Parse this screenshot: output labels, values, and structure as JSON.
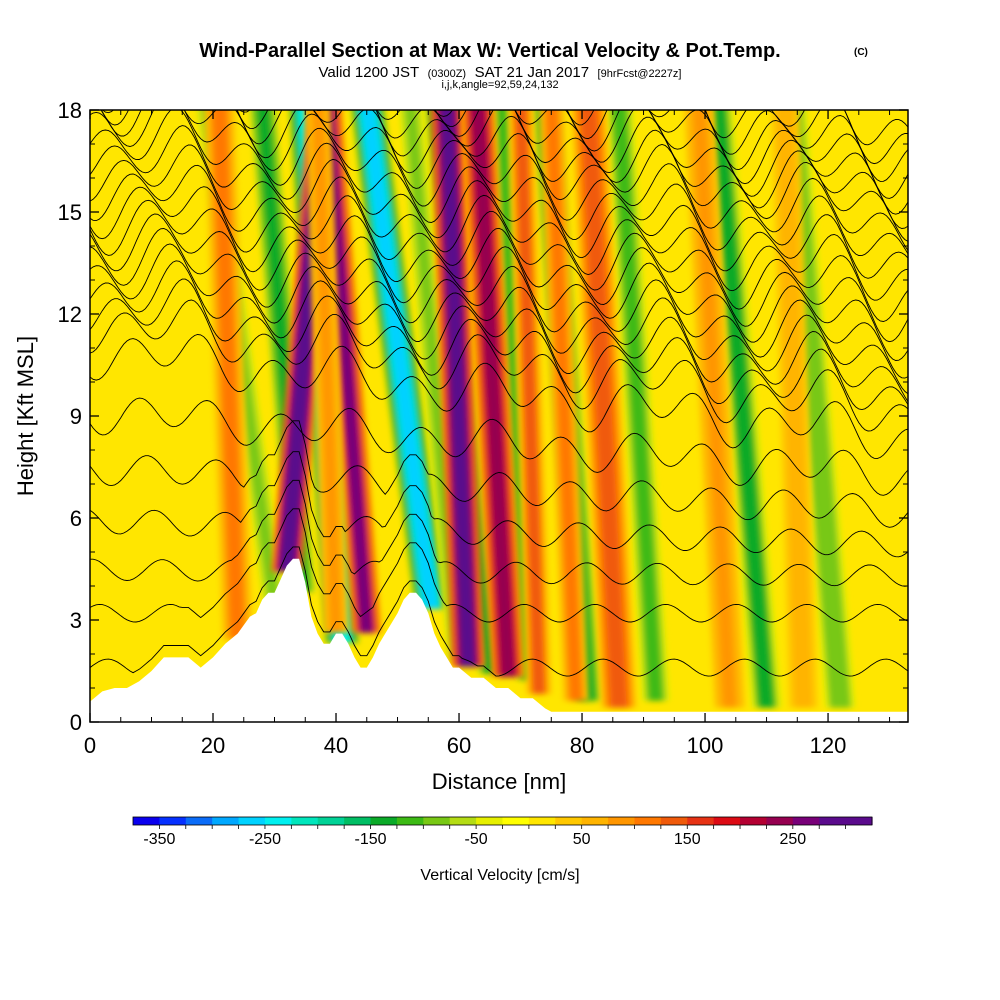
{
  "chart_data": {
    "type": "heatmap",
    "title": "Wind-Parallel Section at Max W: Vertical Velocity & Pot.Temp.",
    "title_mark": "(C)",
    "subtitle": {
      "valid": "Valid 1200 JST",
      "utc": "(0300Z)",
      "date": "SAT 21 Jan 2017",
      "fcst": "[9hrFcst@2227z]",
      "indices": "i,j,k,angle=92,59,24,132"
    },
    "xlabel": "Distance [nm]",
    "ylabel": "Height [Kft MSL]",
    "xlim": [
      0,
      133
    ],
    "ylim": [
      0,
      18
    ],
    "x_ticks": [
      0,
      20,
      40,
      60,
      80,
      100,
      120
    ],
    "y_ticks": [
      0,
      3,
      6,
      9,
      12,
      15,
      18
    ],
    "colorbar": {
      "label": "Vertical Velocity [cm/s]",
      "range": [
        -375,
        325
      ],
      "step": 25,
      "tick_values": [
        -350,
        -250,
        -150,
        -50,
        50,
        150,
        250
      ],
      "tick_labels": [
        "-350",
        "-250",
        "-150",
        "-50",
        "50",
        "150",
        "250"
      ],
      "colors": [
        "#0a00ee",
        "#0530ff",
        "#0a6cf8",
        "#00a8ff",
        "#00d2ff",
        "#00f0f0",
        "#00e6bc",
        "#00d296",
        "#00be64",
        "#0aaa28",
        "#3cba14",
        "#78c814",
        "#b4dc14",
        "#e6f000",
        "#ffff00",
        "#ffe600",
        "#ffc800",
        "#ffb400",
        "#ff9600",
        "#ff7800",
        "#f05a0a",
        "#e63214",
        "#dc0a14",
        "#b40032",
        "#960050",
        "#780078",
        "#5a0a8c",
        "#5a0a8c"
      ]
    },
    "terrain": {
      "x": [
        0,
        2,
        4,
        6,
        8,
        10,
        12,
        14,
        16,
        18,
        20,
        22,
        24,
        26,
        27,
        28,
        29,
        30,
        31,
        32,
        33,
        34,
        35,
        36,
        37,
        38,
        39,
        40,
        41,
        42,
        43,
        44,
        45,
        46,
        47,
        48,
        49,
        50,
        51,
        52,
        53,
        54,
        55,
        56,
        57,
        58,
        59,
        60,
        62,
        64,
        66,
        68,
        70,
        72,
        74,
        75,
        76,
        133
      ],
      "height_kft": [
        0.6,
        0.9,
        1.0,
        1.0,
        1.2,
        1.5,
        1.9,
        1.9,
        1.9,
        1.6,
        1.9,
        2.3,
        2.6,
        3.1,
        3.2,
        3.6,
        3.8,
        3.8,
        4.2,
        4.6,
        4.8,
        4.8,
        4.1,
        3.1,
        2.6,
        2.3,
        2.3,
        2.6,
        2.6,
        2.3,
        1.9,
        1.6,
        1.6,
        1.9,
        2.3,
        2.6,
        2.9,
        3.2,
        3.6,
        3.8,
        3.8,
        3.6,
        3.2,
        2.6,
        2.2,
        1.9,
        1.6,
        1.6,
        1.3,
        1.3,
        1.0,
        1.0,
        0.7,
        0.7,
        0.4,
        0.3,
        0.3,
        0.3
      ]
    },
    "updraft_bands": [
      {
        "x_bottom": 32,
        "x_top": 38,
        "y_bottom": 4.6,
        "width_nm": 2.4,
        "w_cms": 325
      },
      {
        "x_bottom": 45,
        "x_top": 38.5,
        "y_bottom": 2.8,
        "width_nm": 2.3,
        "w_cms": 250
      },
      {
        "x_bottom": 61.5,
        "x_top": 58,
        "y_bottom": 1.8,
        "width_nm": 2.6,
        "w_cms": 300
      },
      {
        "x_bottom": 68,
        "x_top": 63,
        "y_bottom": 1.5,
        "width_nm": 2.6,
        "w_cms": 225
      },
      {
        "x_bottom": 73,
        "x_top": 70,
        "y_bottom": 1.0,
        "width_nm": 2.0,
        "w_cms": 130
      },
      {
        "x_bottom": 79,
        "x_top": 75,
        "y_bottom": 0.8,
        "width_nm": 2.0,
        "w_cms": 100
      },
      {
        "x_bottom": 86,
        "x_top": 81,
        "y_bottom": 0.6,
        "width_nm": 2.8,
        "w_cms": 135
      },
      {
        "x_bottom": 24,
        "x_top": 21,
        "y_bottom": 2.6,
        "width_nm": 2.4,
        "w_cms": 110
      },
      {
        "x_bottom": 40,
        "x_top": 37,
        "y_bottom": 2.8,
        "width_nm": 2.0,
        "w_cms": 90
      },
      {
        "x_bottom": 104,
        "x_top": 99,
        "y_bottom": 0.6,
        "width_nm": 2.4,
        "w_cms": 90
      },
      {
        "x_bottom": 116,
        "x_top": 113,
        "y_bottom": 0.6,
        "width_nm": 2.2,
        "w_cms": 70
      }
    ],
    "downdraft_bands": [
      {
        "x_bottom": 34.5,
        "x_top": 28,
        "y_bottom": 4.0,
        "width_nm": 2.0,
        "w_cms": -150
      },
      {
        "x_bottom": 41,
        "x_top": 35,
        "y_bottom": 2.5,
        "width_nm": 2.6,
        "w_cms": -250
      },
      {
        "x_bottom": 55.5,
        "x_top": 45,
        "y_bottom": 3.5,
        "width_nm": 2.6,
        "w_cms": -260
      },
      {
        "x_bottom": 65,
        "x_top": 56,
        "y_bottom": 1.6,
        "width_nm": 2.0,
        "w_cms": -130
      },
      {
        "x_bottom": 71,
        "x_top": 67,
        "y_bottom": 1.4,
        "width_nm": 1.8,
        "w_cms": -120
      },
      {
        "x_bottom": 81,
        "x_top": 74,
        "y_bottom": 0.8,
        "width_nm": 2.2,
        "w_cms": -140
      },
      {
        "x_bottom": 92,
        "x_top": 86,
        "y_bottom": 0.8,
        "width_nm": 2.2,
        "w_cms": -110
      },
      {
        "x_bottom": 110,
        "x_top": 102,
        "y_bottom": 0.6,
        "width_nm": 2.4,
        "w_cms": -130
      },
      {
        "x_bottom": 122,
        "x_top": 114,
        "y_bottom": 0.6,
        "width_nm": 2.4,
        "w_cms": -100
      },
      {
        "x_bottom": 30,
        "x_top": 19,
        "y_bottom": 3.6,
        "width_nm": 1.8,
        "w_cms": -90
      },
      {
        "x_bottom": 60,
        "x_top": 52,
        "y_bottom": 2.0,
        "width_nm": 1.8,
        "w_cms": -90
      }
    ],
    "theta_contours": {
      "interval_c": 1,
      "levels": [
        1,
        2,
        3,
        4,
        5,
        6,
        7,
        8,
        9,
        10,
        11,
        12,
        13,
        14,
        15,
        16,
        17,
        18,
        19,
        20,
        21,
        22,
        23,
        24,
        25,
        26
      ],
      "base_heights_kft": [
        1.6,
        3.2,
        4.4,
        5.6,
        6.9,
        8.3,
        9.8,
        10.6,
        11.1,
        11.6,
        12.1,
        12.6,
        13.1,
        13.6,
        14.1,
        14.6,
        15.1,
        15.6,
        16.1,
        16.6,
        17.0,
        17.4,
        17.8,
        18.2,
        18.6,
        19.0
      ]
    }
  }
}
